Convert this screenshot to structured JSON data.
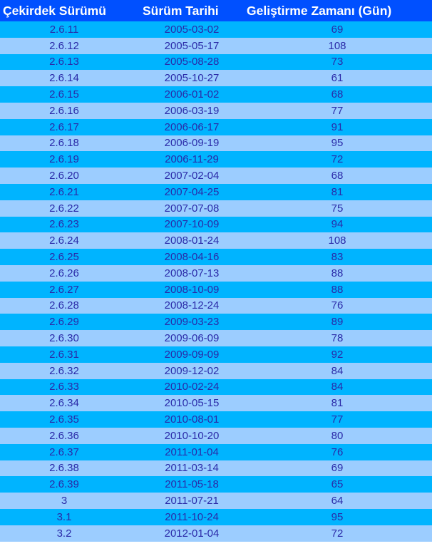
{
  "table": {
    "headers": [
      "Çekirdek Sürümü",
      "Sürüm Tarihi",
      "Geliştirme Zamanı (Gün)"
    ],
    "rows": [
      [
        "2.6.11",
        "2005-03-02",
        "69"
      ],
      [
        "2.6.12",
        "2005-05-17",
        "108"
      ],
      [
        "2.6.13",
        "2005-08-28",
        "73"
      ],
      [
        "2.6.14",
        "2005-10-27",
        "61"
      ],
      [
        "2.6.15",
        "2006-01-02",
        "68"
      ],
      [
        "2.6.16",
        "2006-03-19",
        "77"
      ],
      [
        "2.6.17",
        "2006-06-17",
        "91"
      ],
      [
        "2.6.18",
        "2006-09-19",
        "95"
      ],
      [
        "2.6.19",
        "2006-11-29",
        "72"
      ],
      [
        "2.6.20",
        "2007-02-04",
        "68"
      ],
      [
        "2.6.21",
        "2007-04-25",
        "81"
      ],
      [
        "2.6.22",
        "2007-07-08",
        "75"
      ],
      [
        "2.6.23",
        "2007-10-09",
        "94"
      ],
      [
        "2.6.24",
        "2008-01-24",
        "108"
      ],
      [
        "2.6.25",
        "2008-04-16",
        "83"
      ],
      [
        "2.6.26",
        "2008-07-13",
        "88"
      ],
      [
        "2.6.27",
        "2008-10-09",
        "88"
      ],
      [
        "2.6.28",
        "2008-12-24",
        "76"
      ],
      [
        "2.6.29",
        "2009-03-23",
        "89"
      ],
      [
        "2.6.30",
        "2009-06-09",
        "78"
      ],
      [
        "2.6.31",
        "2009-09-09",
        "92"
      ],
      [
        "2.6.32",
        "2009-12-02",
        "84"
      ],
      [
        "2.6.33",
        "2010-02-24",
        "84"
      ],
      [
        "2.6.34",
        "2010-05-15",
        "81"
      ],
      [
        "2.6.35",
        "2010-08-01",
        "77"
      ],
      [
        "2.6.36",
        "2010-10-20",
        "80"
      ],
      [
        "2.6.37",
        "2011-01-04",
        "76"
      ],
      [
        "2.6.38",
        "2011-03-14",
        "69"
      ],
      [
        "2.6.39",
        "2011-05-18",
        "65"
      ],
      [
        "3",
        "2011-07-21",
        "64"
      ],
      [
        "3.1",
        "2011-10-24",
        "95"
      ],
      [
        "3.2",
        "2012-01-04",
        "72"
      ]
    ]
  },
  "colors": {
    "header_bg": "#0050ff",
    "header_text": "#ffffff",
    "row_odd_bg": "#00b4ff",
    "row_even_bg": "#9ccdff",
    "cell_text": "#2a2aa8"
  }
}
